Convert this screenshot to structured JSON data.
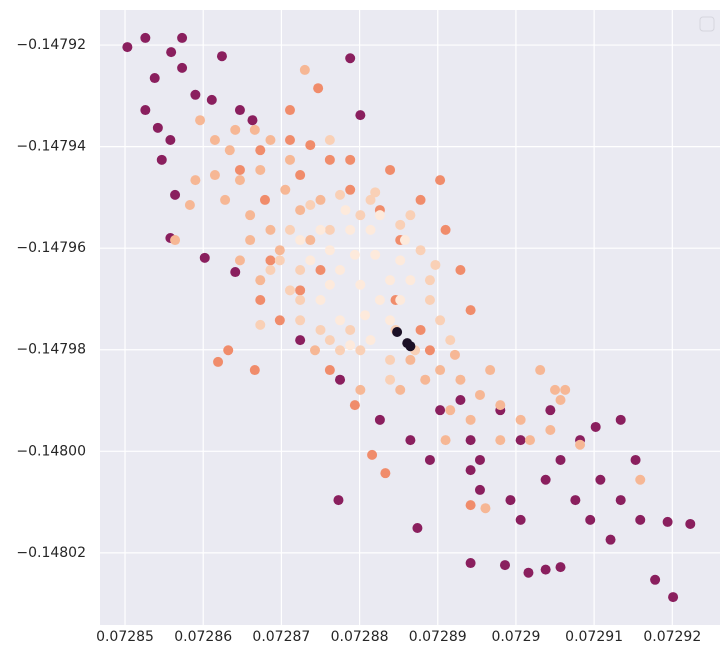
{
  "chart_data": {
    "type": "scatter",
    "xlim": [
      0.0728468,
      0.0729261
    ],
    "ylim": [
      -0.1480342,
      -0.1479131
    ],
    "xticks": [
      0.07285,
      0.07286,
      0.07287,
      0.07288,
      0.07289,
      0.0729,
      0.07291,
      0.07292
    ],
    "yticks": [
      {
        "value": -0.14792,
        "label": "−0.14792"
      },
      {
        "value": -0.14794,
        "label": "−0.14794"
      },
      {
        "value": -0.14796,
        "label": "−0.14796"
      },
      {
        "value": -0.14798,
        "label": "−0.14798"
      },
      {
        "value": -0.148,
        "label": "−0.14800"
      },
      {
        "value": -0.14802,
        "label": "−0.14802"
      }
    ],
    "grid": true,
    "legend": "upper right",
    "series": [
      {
        "color": "#8a1f5e",
        "x": [
          0.0728503,
          0.0728526,
          0.0728573,
          0.0728559,
          0.0728624,
          0.0728538,
          0.0728573,
          0.072859,
          0.0728611,
          0.0728647,
          0.0728526,
          0.0728542,
          0.0728558,
          0.0728547,
          0.0728564,
          0.0728558,
          0.0728602,
          0.0728641,
          0.0728773,
          0.0728801,
          0.0728788,
          0.0728663,
          0.0728724,
          0.0728775,
          0.0728826,
          0.0728865,
          0.072889,
          0.0728942,
          0.0728954,
          0.0728993,
          0.0729006,
          0.0729038,
          0.0729057,
          0.0729076,
          0.0729095,
          0.0729121,
          0.0729134,
          0.0729159,
          0.0729178,
          0.0729201,
          0.0729223,
          0.0729194,
          0.0729038,
          0.0729057,
          0.0729016,
          0.0728942,
          0.0728986,
          0.0729108,
          0.0729082,
          0.072898,
          0.0729006,
          0.0728942,
          0.0728903,
          0.0728874,
          0.0728929,
          0.0728954,
          0.0729044,
          0.0729134,
          0.0729102,
          0.0729153
        ],
        "y": [
          -0.1479204,
          -0.1479186,
          -0.1479186,
          -0.1479214,
          -0.1479222,
          -0.1479265,
          -0.1479245,
          -0.1479298,
          -0.1479308,
          -0.1479328,
          -0.1479328,
          -0.1479363,
          -0.1479387,
          -0.1479426,
          -0.1479495,
          -0.147958,
          -0.1479619,
          -0.1479647,
          -0.1480096,
          -0.1479338,
          -0.1479226,
          -0.1479348,
          -0.1479781,
          -0.1479859,
          -0.1479938,
          -0.1479978,
          -0.1480017,
          -0.1480037,
          -0.1480076,
          -0.1480096,
          -0.1480135,
          -0.1480056,
          -0.1480017,
          -0.1480096,
          -0.1480135,
          -0.1480174,
          -0.1480096,
          -0.1480135,
          -0.1480253,
          -0.1480287,
          -0.1480143,
          -0.1480139,
          -0.1480233,
          -0.1480228,
          -0.1480239,
          -0.148022,
          -0.1480224,
          -0.1480056,
          -0.1479978,
          -0.1479919,
          -0.1479978,
          -0.1479978,
          -0.1479919,
          -0.1480151,
          -0.1479899,
          -0.1480017,
          -0.1479919,
          -0.1479938,
          -0.1479952,
          -0.1480017
        ]
      },
      {
        "color": "#f08c6b",
        "x": [
          0.0728619,
          0.0728666,
          0.0728632,
          0.0728698,
          0.0728724,
          0.072875,
          0.0728673,
          0.0728686,
          0.0728788,
          0.0728839,
          0.0728878,
          0.0728903,
          0.072891,
          0.0728929,
          0.0728942,
          0.0728878,
          0.0728711,
          0.0728737,
          0.0728762,
          0.0728788,
          0.0728826,
          0.0728852,
          0.0728673,
          0.0728647,
          0.0728724,
          0.0728794,
          0.0728816,
          0.0728833,
          0.0728762,
          0.0728942,
          0.0728747,
          0.0728711,
          0.0728679,
          0.072889,
          0.0728846
        ],
        "y": [
          -0.1479824,
          -0.147984,
          -0.1479801,
          -0.1479742,
          -0.1479683,
          -0.1479643,
          -0.1479702,
          -0.1479624,
          -0.1479426,
          -0.1479446,
          -0.1479505,
          -0.1479466,
          -0.1479564,
          -0.1479643,
          -0.1479722,
          -0.1479761,
          -0.1479328,
          -0.1479397,
          -0.1479426,
          -0.1479485,
          -0.1479525,
          -0.1479584,
          -0.1479407,
          -0.1479446,
          -0.1479456,
          -0.1479909,
          -0.1480007,
          -0.1480043,
          -0.147984,
          -0.1480106,
          -0.1479285,
          -0.1479387,
          -0.1479505,
          -0.1479801,
          -0.1479702
        ]
      },
      {
        "color": "#f6b795",
        "x": [
          0.0728596,
          0.0728615,
          0.0728634,
          0.0728647,
          0.0728628,
          0.072866,
          0.0728686,
          0.0728673,
          0.0728705,
          0.0728724,
          0.0728737,
          0.0728698,
          0.072866,
          0.0728615,
          0.072859,
          0.0728583,
          0.0728641,
          0.0728666,
          0.0728686,
          0.0728711,
          0.072875,
          0.0728647,
          0.0728673,
          0.0728903,
          0.0728929,
          0.0728954,
          0.072898,
          0.0729006,
          0.0728942,
          0.0728916,
          0.072898,
          0.0729018,
          0.0729044,
          0.0729057,
          0.0729063,
          0.0729031,
          0.0728967,
          0.0728922,
          0.0728884,
          0.0728865,
          0.0728852,
          0.072891,
          0.0728961,
          0.0728564,
          0.0729159,
          0.072905,
          0.0729082,
          0.072873,
          0.0728801,
          0.0728743
        ],
        "y": [
          -0.1479348,
          -0.1479387,
          -0.1479407,
          -0.1479466,
          -0.1479505,
          -0.1479535,
          -0.1479564,
          -0.1479446,
          -0.1479485,
          -0.1479525,
          -0.1479584,
          -0.1479604,
          -0.1479584,
          -0.1479456,
          -0.1479466,
          -0.1479515,
          -0.1479367,
          -0.1479367,
          -0.1479387,
          -0.1479426,
          -0.1479505,
          -0.1479624,
          -0.1479663,
          -0.147984,
          -0.1479859,
          -0.1479889,
          -0.1479909,
          -0.1479938,
          -0.1479938,
          -0.1479919,
          -0.1479978,
          -0.1479978,
          -0.1479958,
          -0.1479899,
          -0.1479879,
          -0.147984,
          -0.147984,
          -0.147981,
          -0.1479859,
          -0.147982,
          -0.1479879,
          -0.1479978,
          -0.1480112,
          -0.1479584,
          -0.1480056,
          -0.1479879,
          -0.1479987,
          -0.1479249,
          -0.1479879,
          -0.1479801
        ]
      },
      {
        "color": "#f9d0b6",
        "x": [
          0.0728686,
          0.0728711,
          0.0728724,
          0.0728762,
          0.0728801,
          0.0728839,
          0.0728871,
          0.0728903,
          0.072889,
          0.0728878,
          0.0728852,
          0.0728814,
          0.0728775,
          0.0728737,
          0.0728711,
          0.0728698,
          0.072875,
          0.0728788,
          0.0728846,
          0.072889,
          0.0728724,
          0.0728762,
          0.0728801,
          0.0728865,
          0.0728762,
          0.0728916,
          0.0728775,
          0.0728839,
          0.0728724,
          0.0728673,
          0.072882,
          0.0728897
        ],
        "y": [
          -0.1479643,
          -0.1479683,
          -0.1479742,
          -0.1479781,
          -0.1479801,
          -0.147982,
          -0.1479801,
          -0.1479742,
          -0.1479663,
          -0.1479604,
          -0.1479554,
          -0.1479505,
          -0.1479495,
          -0.1479515,
          -0.1479564,
          -0.1479624,
          -0.1479761,
          -0.1479761,
          -0.1479761,
          -0.1479702,
          -0.1479643,
          -0.1479564,
          -0.1479535,
          -0.1479535,
          -0.1479387,
          -0.1479781,
          -0.1479801,
          -0.1479859,
          -0.1479702,
          -0.1479751,
          -0.147949,
          -0.1479633
        ]
      },
      {
        "color": "#fdeadc",
        "x": [
          0.0728801,
          0.0728775,
          0.0728826,
          0.0728762,
          0.0728839,
          0.0728788,
          0.0728814,
          0.0728852,
          0.0728852,
          0.072875,
          0.0728775,
          0.0728814,
          0.0728839,
          0.0728762,
          0.0728737,
          0.0728782,
          0.072882,
          0.0728794,
          0.0728807,
          0.072875,
          0.0728865,
          0.0728826,
          0.0728788,
          0.0728724,
          0.0728858
        ],
        "y": [
          -0.1479672,
          -0.1479643,
          -0.1479702,
          -0.1479604,
          -0.1479742,
          -0.1479564,
          -0.1479564,
          -0.1479624,
          -0.1479702,
          -0.1479702,
          -0.1479742,
          -0.1479781,
          -0.1479663,
          -0.1479672,
          -0.1479624,
          -0.1479525,
          -0.1479613,
          -0.1479613,
          -0.1479732,
          -0.1479564,
          -0.1479663,
          -0.1479535,
          -0.1479791,
          -0.1479584,
          -0.1479584
        ]
      },
      {
        "color": "#1b1026",
        "x": [
          0.0728865,
          0.0728861,
          0.0728848
        ],
        "y": [
          -0.1479793,
          -0.1479787,
          -0.1479765
        ]
      }
    ]
  }
}
